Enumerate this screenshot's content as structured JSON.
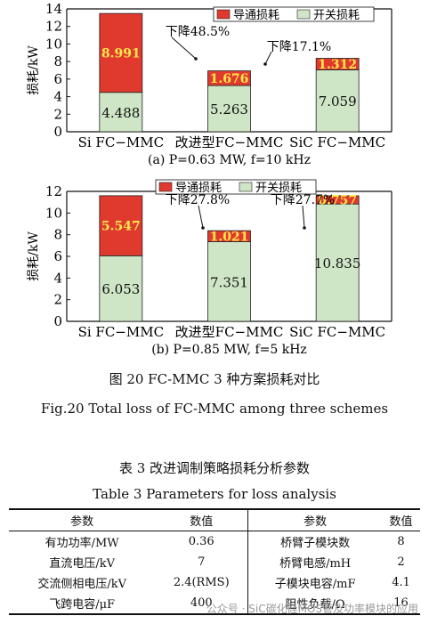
{
  "chart_data": [
    {
      "type": "bar",
      "stacked": true,
      "categories": [
        "Si FC−MMC",
        "改进型FC−MMC",
        "SiC FC−MMC"
      ],
      "series": [
        {
          "name": "开关损耗",
          "values": [
            4.488,
            5.263,
            7.059
          ],
          "color": "#cfe6c6"
        },
        {
          "name": "导通损耗",
          "values": [
            8.991,
            1.676,
            1.312
          ],
          "color": "#e03a2f"
        }
      ],
      "data_labels": {
        "开关损耗": [
          "4.488",
          "5.263",
          "7.059"
        ],
        "导通损耗": [
          "8.991",
          "1.676",
          "1.312"
        ]
      },
      "ylabel": "损耗/kW",
      "ylim": [
        0,
        14
      ],
      "yticks": [
        0,
        2,
        4,
        6,
        8,
        10,
        12,
        14
      ],
      "annotations": [
        "下降48.5%",
        "下降17.1%"
      ],
      "subtitle": "(a) P=0.63 MW, f=10 kHz",
      "legend_position": "top-right"
    },
    {
      "type": "bar",
      "stacked": true,
      "categories": [
        "Si FC−MMC",
        "改进型FC−MMC",
        "SiC FC−MMC"
      ],
      "series": [
        {
          "name": "开关损耗",
          "values": [
            6.053,
            7.351,
            10.835
          ],
          "color": "#cfe6c6"
        },
        {
          "name": "导通损耗",
          "values": [
            5.547,
            1.021,
            0.757
          ],
          "color": "#e03a2f"
        }
      ],
      "data_labels": {
        "开关损耗": [
          "6.053",
          "7.351",
          "10.835"
        ],
        "导通损耗": [
          "5.547",
          "1.021",
          "0.757"
        ]
      },
      "ylabel": "损耗/kW",
      "ylim": [
        0,
        12
      ],
      "yticks": [
        0,
        2,
        4,
        6,
        8,
        10,
        12
      ],
      "annotations": [
        "下降27.8%",
        "下降27.7%"
      ],
      "subtitle": "(b) P=0.85 MW, f=5 kHz",
      "legend_position": "top-right"
    }
  ],
  "figure_caption_cn": "图 20   FC-MMC 3 种方案损耗对比",
  "figure_caption_en": "Fig.20    Total loss of FC-MMC among three schemes",
  "table_caption_cn": "表 3    改进调制策略损耗分析参数",
  "table_caption_en": "Table 3    Parameters for loss analysis",
  "table": {
    "headers": [
      "参数",
      "数值",
      "参数",
      "数值"
    ],
    "rows": [
      [
        "有功功率/MW",
        "0.36",
        "桥臂子模块数",
        "8"
      ],
      [
        "直流电压/kV",
        "7",
        "桥臂电感/mH",
        "2"
      ],
      [
        "交流侧相电压/kV",
        "2.4(RMS)",
        "子模块电容/mF",
        "4.1"
      ],
      [
        "飞跨电容/μF",
        "400",
        "阻性负载/Ω",
        "16"
      ]
    ]
  },
  "watermark": "公众号 · SiC碳化硅MOS管及功率模块的应用"
}
